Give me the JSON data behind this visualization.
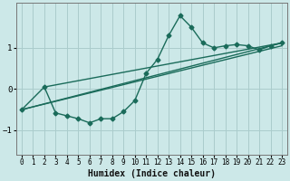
{
  "xlabel": "Humidex (Indice chaleur)",
  "ylabel": "",
  "bg_color": "#cce8e8",
  "grid_color": "#aacccc",
  "line_color": "#1a6b5a",
  "xlim": [
    -0.5,
    23.5
  ],
  "ylim": [
    -1.6,
    2.1
  ],
  "yticks": [
    -1,
    0,
    1
  ],
  "xticks": [
    0,
    1,
    2,
    3,
    4,
    5,
    6,
    7,
    8,
    9,
    10,
    11,
    12,
    13,
    14,
    15,
    16,
    17,
    18,
    19,
    20,
    21,
    22,
    23
  ],
  "series": [
    {
      "x": [
        0,
        2,
        3,
        4,
        5,
        6,
        7,
        8,
        9,
        10,
        11,
        12,
        13,
        14,
        15,
        16,
        17,
        18,
        19,
        20,
        21,
        22,
        23
      ],
      "y": [
        -0.5,
        0.05,
        -0.58,
        -0.65,
        -0.72,
        -0.82,
        -0.72,
        -0.72,
        -0.55,
        -0.28,
        0.38,
        0.72,
        1.3,
        1.78,
        1.5,
        1.12,
        1.0,
        1.05,
        1.08,
        1.05,
        0.95,
        1.05,
        1.12
      ],
      "marker": "D",
      "markersize": 2.5,
      "linewidth": 1.0
    },
    {
      "x": [
        0,
        23
      ],
      "y": [
        -0.5,
        1.12
      ],
      "marker": null,
      "markersize": 0,
      "linewidth": 1.0
    },
    {
      "x": [
        2,
        23
      ],
      "y": [
        0.05,
        1.12
      ],
      "marker": null,
      "markersize": 0,
      "linewidth": 1.0
    },
    {
      "x": [
        0,
        23
      ],
      "y": [
        -0.5,
        1.05
      ],
      "marker": null,
      "markersize": 0,
      "linewidth": 1.0
    }
  ]
}
